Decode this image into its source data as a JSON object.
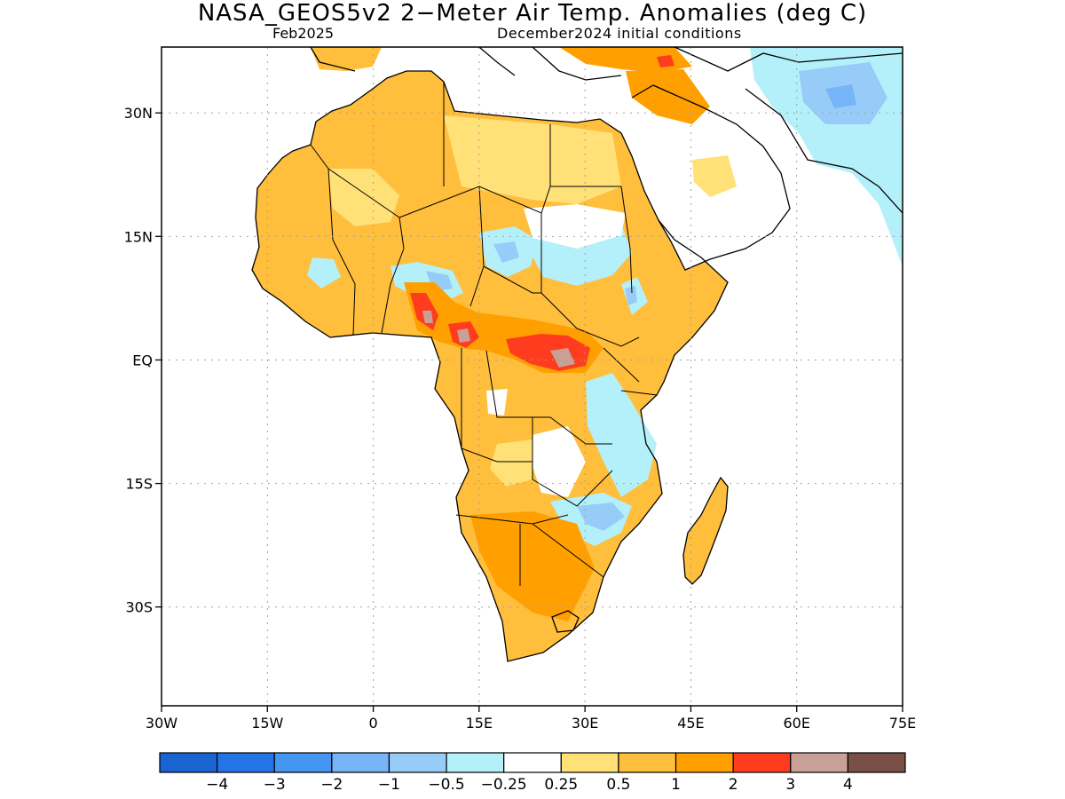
{
  "title": "NASA_GEOS5v2 2−Meter Air Temp. Anomalies (deg C)",
  "subtitle_left": "Feb2025",
  "subtitle_right": "December2024 initial conditions",
  "map": {
    "lon_range": [
      -30,
      75
    ],
    "lat_range": [
      -42,
      38
    ],
    "x_ticks": [
      {
        "value": -30,
        "label": "30W"
      },
      {
        "value": -15,
        "label": "15W"
      },
      {
        "value": 0,
        "label": "0"
      },
      {
        "value": 15,
        "label": "15E"
      },
      {
        "value": 30,
        "label": "30E"
      },
      {
        "value": 45,
        "label": "45E"
      },
      {
        "value": 60,
        "label": "60E"
      },
      {
        "value": 75,
        "label": "75E"
      }
    ],
    "y_ticks": [
      {
        "value": 30,
        "label": "30N"
      },
      {
        "value": 15,
        "label": "15N"
      },
      {
        "value": 0,
        "label": "EQ"
      },
      {
        "value": -15,
        "label": "15S"
      },
      {
        "value": -30,
        "label": "30S"
      }
    ],
    "grid": "dotted"
  },
  "colorbar": {
    "colors": [
      "#1a64d2",
      "#2474e6",
      "#4496f0",
      "#78b4f8",
      "#98ccf8",
      "#b4f0fa",
      "#ffffff",
      "#ffe178",
      "#ffbe3c",
      "#ffa000",
      "#ff3c1e",
      "#c8a096",
      "#7a5046"
    ],
    "labels": [
      "−4",
      "−3",
      "−2",
      "−1",
      "−0.5",
      "−0.25",
      "0.25",
      "0.5",
      "1",
      "2",
      "3",
      "4"
    ]
  }
}
